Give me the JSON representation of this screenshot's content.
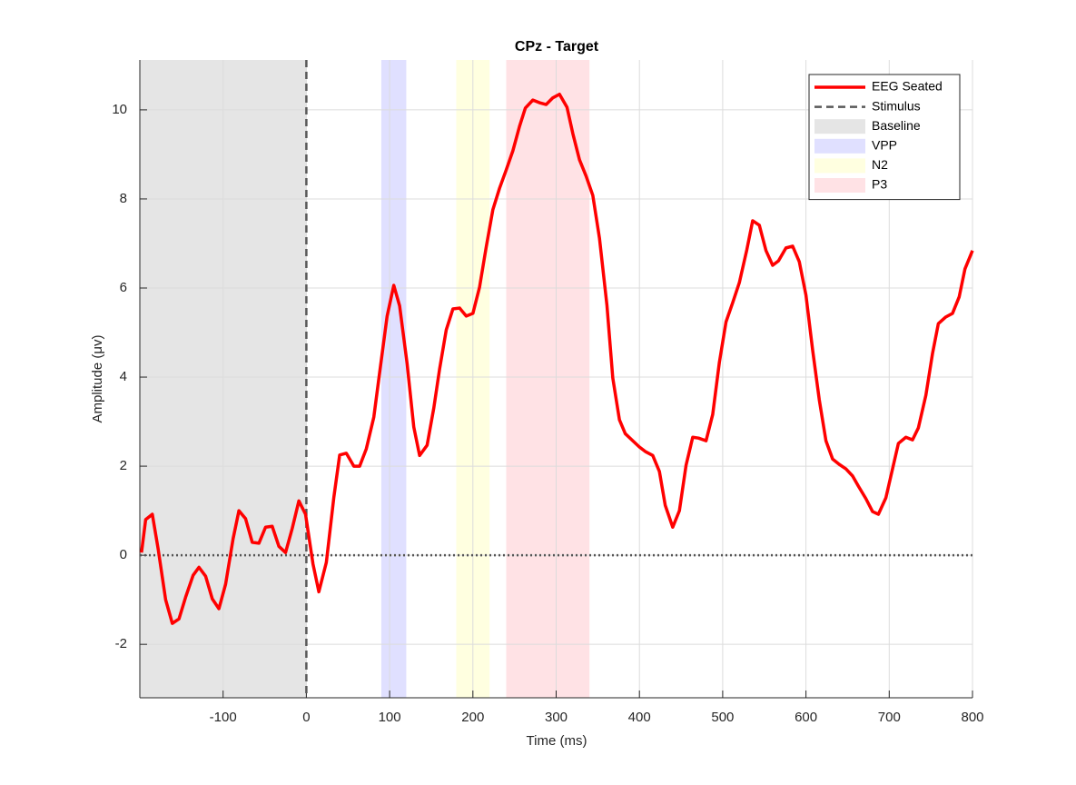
{
  "chart_data": {
    "type": "line",
    "title": "CPz - Target",
    "x_label": "Time (ms)",
    "y_label": "Amplitude (μv)",
    "x": [
      -198,
      -193,
      -185,
      -178,
      -169,
      -161,
      -153,
      -145,
      -136,
      -129,
      -121,
      -113,
      -105,
      -97,
      -88,
      -81,
      -73,
      -65,
      -57,
      -49,
      -41,
      -33,
      -25,
      -17,
      -9,
      -1,
      8,
      15,
      24,
      33,
      40,
      48,
      57,
      64,
      72,
      81,
      88,
      97,
      105,
      112,
      121,
      129,
      136,
      145,
      153,
      160,
      168,
      176,
      184,
      192,
      200,
      208,
      216,
      224,
      232,
      240,
      248,
      256,
      263,
      272,
      280,
      288,
      296,
      304,
      313,
      320,
      328,
      336,
      344,
      352,
      361,
      368,
      376,
      383,
      392,
      400,
      407,
      416,
      424,
      431,
      440,
      448,
      456,
      464,
      471,
      480,
      488,
      496,
      504,
      512,
      520,
      529,
      536,
      544,
      552,
      560,
      567,
      576,
      584,
      592,
      600,
      608,
      616,
      624,
      632,
      640,
      648,
      656,
      663,
      672,
      680,
      687,
      696,
      704,
      711,
      720,
      728,
      735,
      744,
      752,
      759,
      768,
      776,
      784,
      791,
      800
    ],
    "series": [
      {
        "name": "EEG Seated",
        "color": "#ff0000",
        "values": [
          0.06,
          0.8,
          0.92,
          0.14,
          -1.0,
          -1.53,
          -1.43,
          -0.94,
          -0.45,
          -0.27,
          -0.47,
          -0.98,
          -1.2,
          -0.65,
          0.37,
          1.0,
          0.82,
          0.29,
          0.27,
          0.63,
          0.65,
          0.2,
          0.06,
          0.6,
          1.22,
          0.92,
          -0.2,
          -0.82,
          -0.16,
          1.3,
          2.25,
          2.29,
          2.0,
          2.0,
          2.39,
          3.1,
          4.1,
          5.37,
          6.06,
          5.6,
          4.3,
          2.88,
          2.24,
          2.47,
          3.3,
          4.18,
          5.06,
          5.53,
          5.55,
          5.37,
          5.43,
          6.02,
          6.92,
          7.76,
          8.24,
          8.65,
          9.08,
          9.63,
          10.04,
          10.22,
          10.16,
          10.12,
          10.27,
          10.35,
          10.06,
          9.47,
          8.88,
          8.51,
          8.08,
          7.12,
          5.61,
          3.98,
          3.04,
          2.73,
          2.57,
          2.43,
          2.33,
          2.24,
          1.88,
          1.12,
          0.63,
          1.0,
          2.02,
          2.65,
          2.63,
          2.57,
          3.16,
          4.33,
          5.24,
          5.67,
          6.12,
          6.86,
          7.51,
          7.41,
          6.84,
          6.51,
          6.61,
          6.9,
          6.94,
          6.59,
          5.84,
          4.61,
          3.49,
          2.57,
          2.16,
          2.04,
          1.94,
          1.78,
          1.55,
          1.27,
          0.98,
          0.92,
          1.29,
          1.94,
          2.51,
          2.65,
          2.59,
          2.86,
          3.59,
          4.53,
          5.2,
          5.35,
          5.43,
          5.8,
          6.43,
          6.84
        ]
      }
    ],
    "stimulus": {
      "name": "Stimulus",
      "x": 0,
      "color": "#595959"
    },
    "regions": [
      {
        "name": "Baseline",
        "start": -200,
        "end": 0,
        "color": "#e5e5e5"
      },
      {
        "name": "VPP",
        "start": 90,
        "end": 120,
        "color": "#e0e0ff"
      },
      {
        "name": "N2",
        "start": 180,
        "end": 220,
        "color": "#ffffe0"
      },
      {
        "name": "P3",
        "start": 240,
        "end": 340,
        "color": "#ffe2e5"
      }
    ],
    "reference_line": 0,
    "xlim": [
      -200,
      800
    ],
    "ylim": [
      -3.2,
      11.12
    ],
    "xticks": [
      -100,
      0,
      100,
      200,
      300,
      400,
      500,
      600,
      700,
      800
    ],
    "yticks": [
      -2,
      0,
      2,
      4,
      6,
      8,
      10
    ],
    "grid": true,
    "legend": "northeast"
  }
}
